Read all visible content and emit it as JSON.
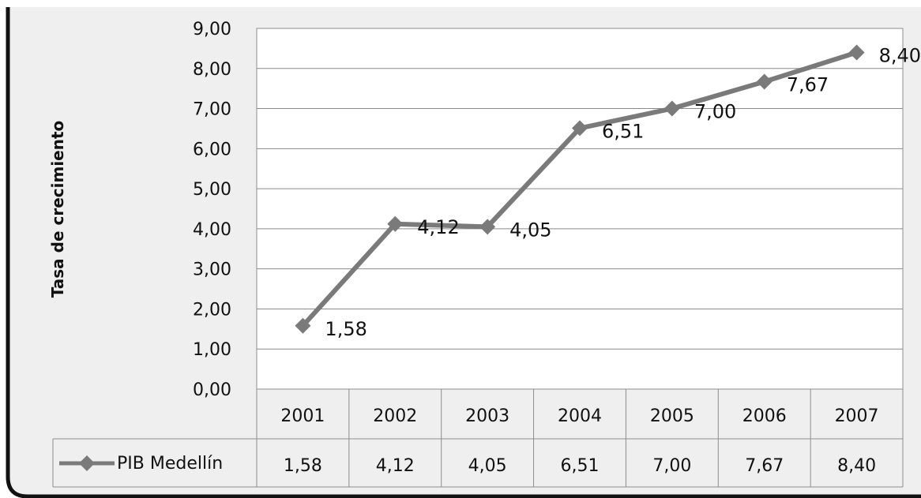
{
  "chart_data": {
    "type": "line",
    "title": "",
    "xlabel": "",
    "ylabel": "Tasa de crecimiento",
    "categories": [
      "2001",
      "2002",
      "2003",
      "2004",
      "2005",
      "2006",
      "2007"
    ],
    "series": [
      {
        "name": "PIB Medellín",
        "values": [
          1.58,
          4.12,
          4.05,
          6.51,
          7.0,
          7.67,
          8.4
        ]
      }
    ],
    "ylim": [
      0,
      9
    ],
    "yticks": [
      0,
      1,
      2,
      3,
      4,
      5,
      6,
      7,
      8,
      9
    ],
    "ytick_labels": [
      "0,00",
      "1,00",
      "2,00",
      "3,00",
      "4,00",
      "5,00",
      "6,00",
      "7,00",
      "8,00",
      "9,00"
    ],
    "data_labels": [
      "1,58",
      "4,12",
      "4,05",
      "6,51",
      "7,00",
      "7,67",
      "8,40"
    ],
    "grid": true,
    "legend": "data-table",
    "line_color": "#7a7a7a",
    "background_color": "#efefef"
  }
}
